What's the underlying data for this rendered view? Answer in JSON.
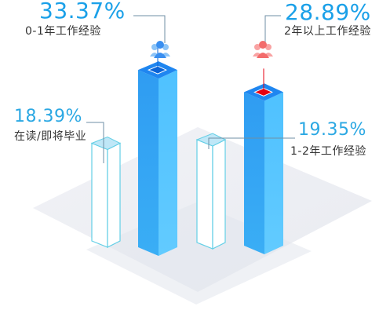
{
  "colors": {
    "highlight_value": "#1aa0e8",
    "normal_value": "#2ba8e3",
    "category_text": "#333333",
    "bar_blue_front": "#2f9cf2",
    "bar_blue_side": "#55c2ff",
    "bar_top": "#1f86f0",
    "bar_outline": "#63cfe6",
    "bar_top_accent": "#e60012",
    "platform": "#eef0f5",
    "platform_shadow": "#e2e5ec"
  },
  "chart_data": {
    "type": "bar",
    "style": "isometric-3d",
    "unit": "%",
    "grid": false,
    "legend": "none",
    "categories": [
      "在读/即将毕业",
      "0-1年工作经验",
      "1-2年工作经验",
      "2年以上工作经验"
    ],
    "values": [
      18.39,
      33.37,
      19.35,
      28.89
    ],
    "labels": [
      {
        "value": "18.39%",
        "category": "在读/即将毕业",
        "fill": "outline",
        "icon": "none"
      },
      {
        "value": "33.37%",
        "category": "0-1年工作经验",
        "fill": "solid",
        "icon": "people-icon-blue"
      },
      {
        "value": "19.35%",
        "category": "1-2年工作经验",
        "fill": "outline",
        "icon": "none"
      },
      {
        "value": "28.89%",
        "category": "2年以上工作经验",
        "fill": "solid",
        "icon": "people-icon-red"
      }
    ]
  }
}
